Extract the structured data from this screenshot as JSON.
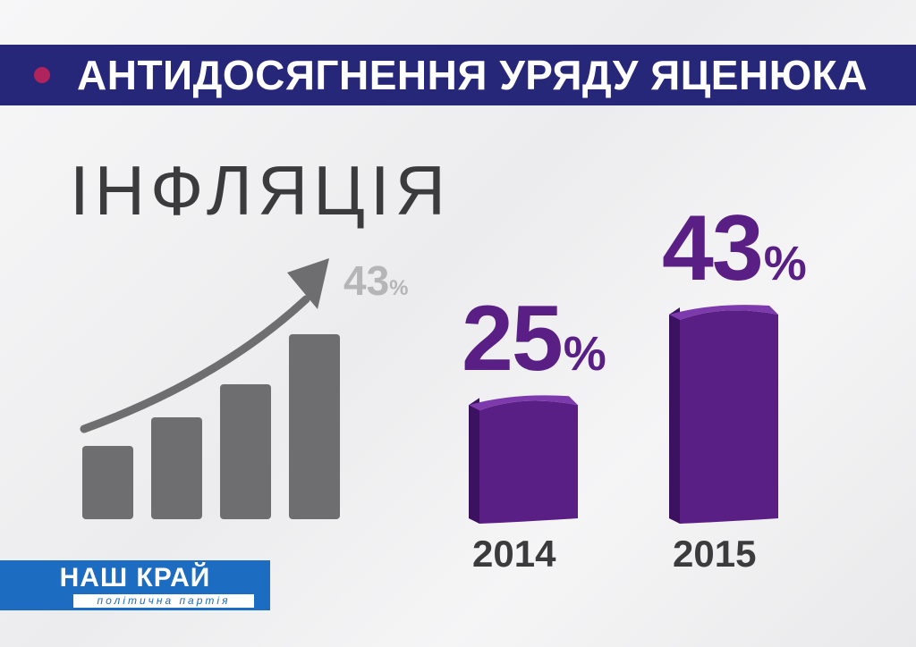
{
  "banner": {
    "title": "АНТИДОСЯГНЕННЯ УРЯДУ ЯЦЕНЮКА",
    "dot_color": "#b0245e",
    "bg_color": "#27277a"
  },
  "subject": "ІНФЛЯЦІЯ",
  "decoration": {
    "icon": "growth-bar-chart-icon",
    "value": "43",
    "unit": "%"
  },
  "chart_data": {
    "type": "bar",
    "categories": [
      "2014",
      "2015"
    ],
    "values": [
      25,
      43
    ],
    "unit": "%",
    "title": "",
    "xlabel": "",
    "ylabel": "",
    "bar_color": "#5a1f84",
    "grid": false
  },
  "logo": {
    "name": "НАШ КРАЙ",
    "subtitle": "політична партія",
    "color": "#1c6cc1"
  }
}
